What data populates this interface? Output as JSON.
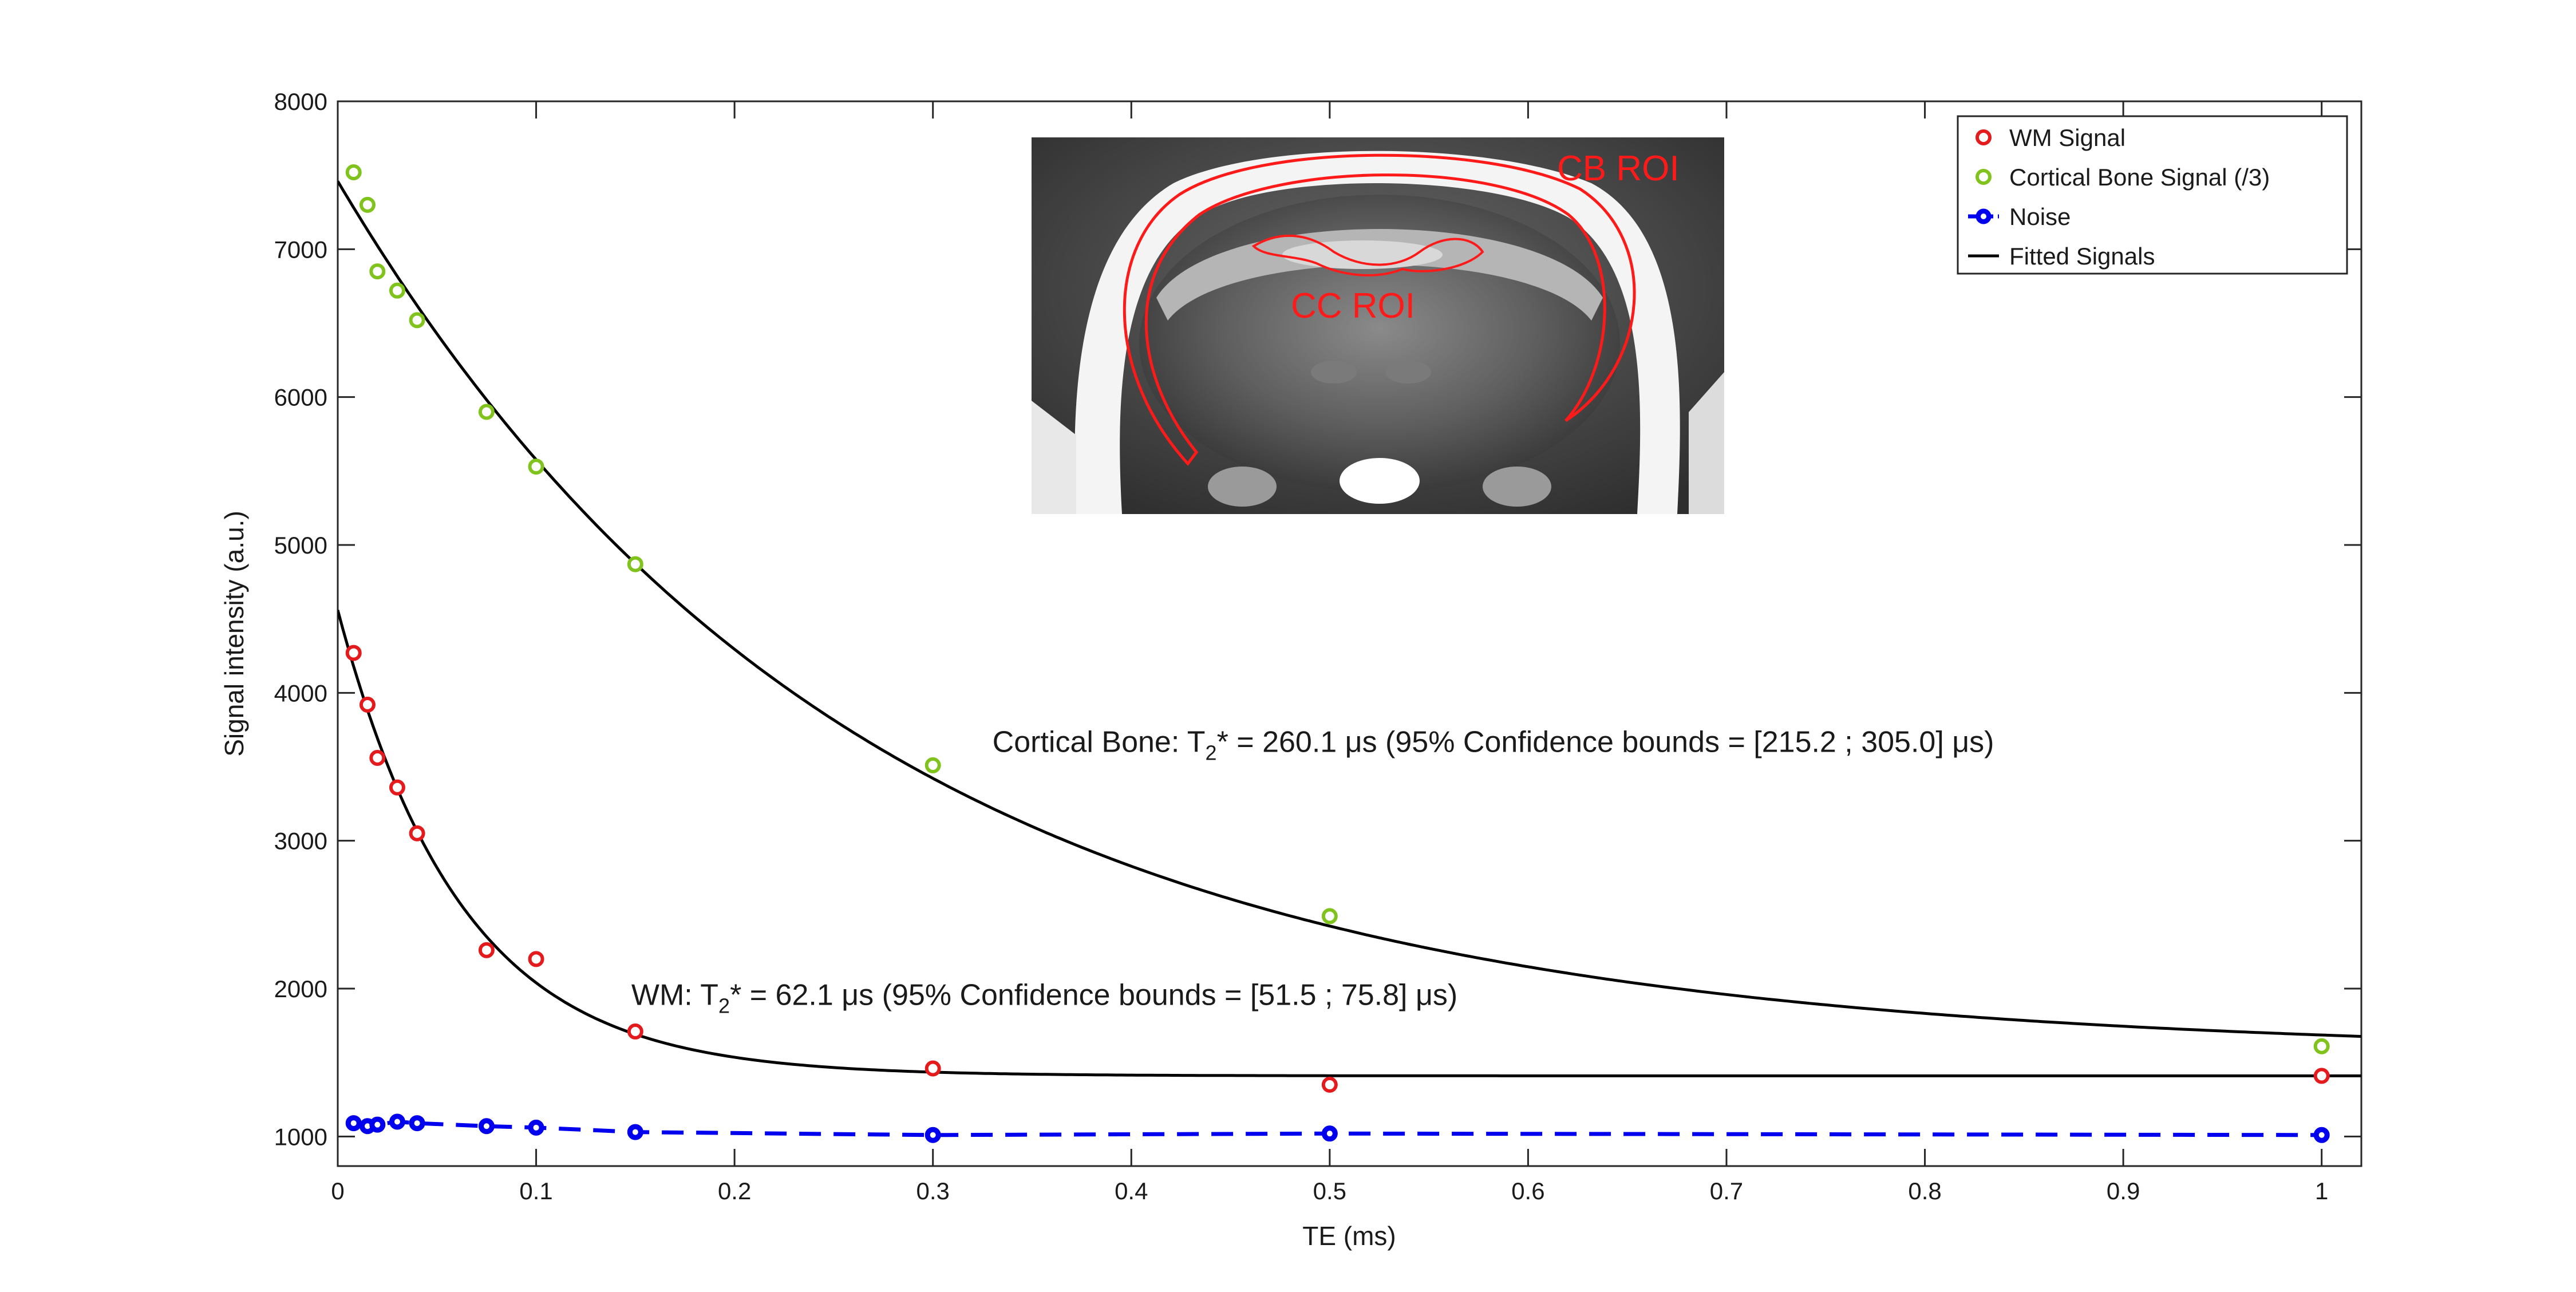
{
  "chart_data": {
    "type": "scatter",
    "xlabel": "TE (ms)",
    "ylabel": "Signal intensity (a.u.)",
    "xlim": [
      0,
      1.02
    ],
    "ylim": [
      800,
      8000
    ],
    "x_ticks": [
      "0",
      "0.1",
      "0.2",
      "0.3",
      "0.4",
      "0.5",
      "0.6",
      "0.7",
      "0.8",
      "0.9",
      "1"
    ],
    "y_ticks": [
      "1000",
      "2000",
      "3000",
      "4000",
      "5000",
      "6000",
      "7000",
      "8000"
    ],
    "grid": false,
    "legend_position": "top-right",
    "series": [
      {
        "name": "WM Signal",
        "color": "#e41a1c",
        "marker": "open-circle",
        "x": [
          0.008,
          0.015,
          0.02,
          0.03,
          0.04,
          0.075,
          0.1,
          0.15,
          0.3,
          0.5,
          1.0
        ],
        "y": [
          4270,
          3920,
          3560,
          3360,
          3050,
          2260,
          2200,
          1710,
          1460,
          1350,
          1410
        ]
      },
      {
        "name": "Cortical Bone Signal (/3)",
        "color": "#7fc31c",
        "marker": "open-circle",
        "x": [
          0.008,
          0.015,
          0.02,
          0.03,
          0.04,
          0.075,
          0.1,
          0.15,
          0.3,
          0.5,
          1.0
        ],
        "y": [
          7520,
          7300,
          6850,
          6720,
          6520,
          5900,
          5530,
          4870,
          3510,
          2490,
          1610
        ]
      },
      {
        "name": "Noise",
        "color": "#0000ee",
        "marker": "open-circle-dashed-line",
        "x": [
          0.008,
          0.015,
          0.02,
          0.03,
          0.04,
          0.075,
          0.1,
          0.15,
          0.3,
          0.5,
          1.0
        ],
        "y": [
          1090,
          1070,
          1080,
          1100,
          1090,
          1070,
          1060,
          1030,
          1010,
          1020,
          1010
        ]
      },
      {
        "name": "Fitted Signals",
        "color": "#000000",
        "marker": "line",
        "curves": [
          {
            "label": "WM fit",
            "amplitude": 3150,
            "t2_ms": 0.0621,
            "offset": 1410
          },
          {
            "label": "Cortical Bone fit",
            "amplitude": 5900,
            "t2_ms": 0.2601,
            "offset": 1560
          }
        ]
      }
    ],
    "annotations": {
      "cortical_bone": {
        "prefix": "Cortical Bone: T",
        "sub": "2",
        "suffix": "* = 260.1 μs (95% Confidence bounds = [215.2 ; 305.0] μs)",
        "x": 0.33,
        "y": 3600
      },
      "wm": {
        "prefix": "WM: T",
        "sub": "2",
        "suffix": "* = 62.1 μs (95% Confidence bounds = [51.5 ; 75.8] μs)",
        "x": 0.148,
        "y": 1890
      }
    },
    "inset": {
      "labels": [
        "CB ROI",
        "CC ROI"
      ]
    }
  }
}
